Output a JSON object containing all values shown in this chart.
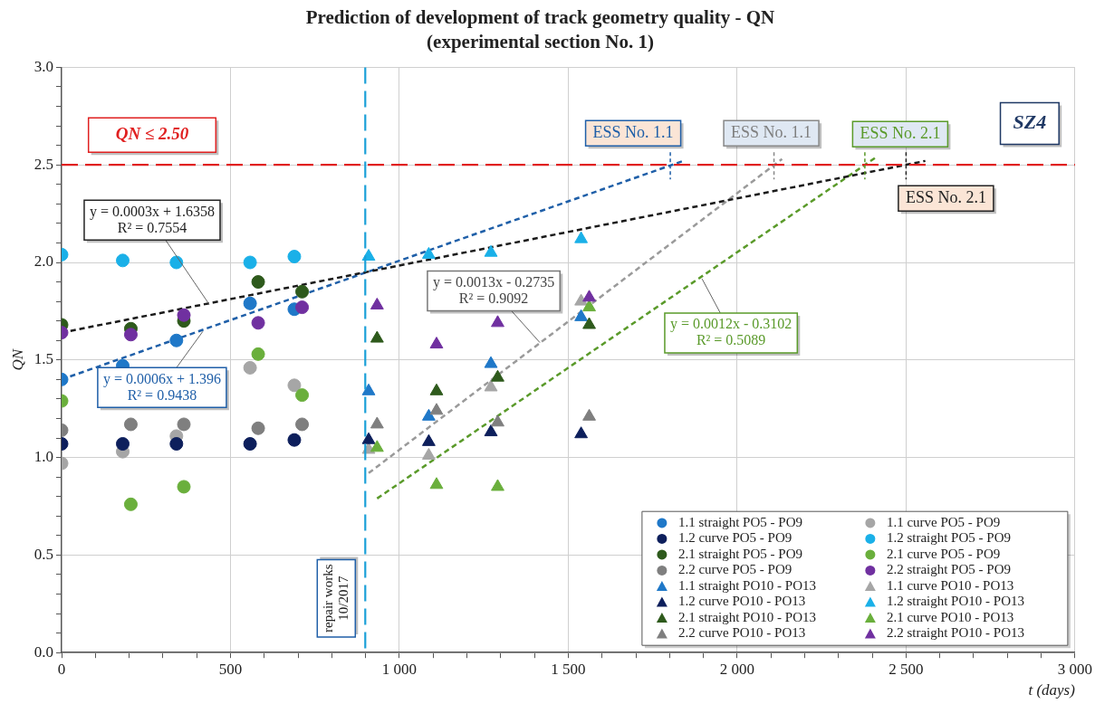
{
  "chart_data": {
    "type": "scatter",
    "title": "Prediction of development of track geometry quality - QN",
    "subtitle": "(experimental section No. 1)",
    "xlabel": "t (days)",
    "ylabel": "QN",
    "xlim": [
      0,
      3000
    ],
    "ylim": [
      0,
      3
    ],
    "xticks": [
      0,
      {
        "value": 100,
        "label": null
      },
      {
        "value": 200,
        "label": null
      },
      {
        "value": 300,
        "label": null
      },
      {
        "value": 400,
        "label": null
      },
      500,
      {
        "value": 600,
        "label": null
      },
      {
        "value": 700,
        "label": null
      },
      {
        "value": 800,
        "label": null
      },
      {
        "value": 900,
        "label": null
      },
      {
        "value": 1000,
        "label": "1 000"
      },
      {
        "value": 1100,
        "label": null
      },
      {
        "value": 1200,
        "label": null
      },
      {
        "value": 1300,
        "label": null
      },
      {
        "value": 1400,
        "label": null
      },
      {
        "value": 1500,
        "label": "1 500"
      },
      {
        "value": 1600,
        "label": null
      },
      {
        "value": 1700,
        "label": null
      },
      {
        "value": 1800,
        "label": null
      },
      {
        "value": 1900,
        "label": null
      },
      {
        "value": 2000,
        "label": "2 000"
      },
      {
        "value": 2100,
        "label": null
      },
      {
        "value": 2200,
        "label": null
      },
      {
        "value": 2300,
        "label": null
      },
      {
        "value": 2400,
        "label": null
      },
      {
        "value": 2500,
        "label": "2 500"
      },
      {
        "value": 2600,
        "label": null
      },
      {
        "value": 2700,
        "label": null
      },
      {
        "value": 2800,
        "label": null
      },
      {
        "value": 2900,
        "label": null
      },
      {
        "value": 3000,
        "label": "3 000"
      }
    ],
    "yticks": [
      {
        "value": 0,
        "label": "0.0"
      },
      {
        "value": 0.1,
        "label": null
      },
      {
        "value": 0.2,
        "label": null
      },
      {
        "value": 0.3,
        "label": null
      },
      {
        "value": 0.4,
        "label": null
      },
      0.5,
      {
        "value": 0.6,
        "label": null
      },
      {
        "value": 0.7,
        "label": null
      },
      {
        "value": 0.8,
        "label": null
      },
      {
        "value": 0.9,
        "label": null
      },
      {
        "value": 1,
        "label": "1.0"
      },
      {
        "value": 1.1,
        "label": null
      },
      {
        "value": 1.2,
        "label": null
      },
      {
        "value": 1.3,
        "label": null
      },
      {
        "value": 1.4,
        "label": null
      },
      1.5,
      {
        "value": 1.6,
        "label": null
      },
      {
        "value": 1.7,
        "label": null
      },
      {
        "value": 1.8,
        "label": null
      },
      {
        "value": 1.9,
        "label": null
      },
      {
        "value": 2,
        "label": "2.0"
      },
      {
        "value": 2.1,
        "label": null
      },
      {
        "value": 2.2,
        "label": null
      },
      {
        "value": 2.3,
        "label": null
      },
      {
        "value": 2.4,
        "label": null
      },
      2.5,
      {
        "value": 2.6,
        "label": null
      },
      {
        "value": 2.7,
        "label": null
      },
      {
        "value": 2.8,
        "label": null
      },
      {
        "value": 2.9,
        "label": null
      },
      {
        "value": 3,
        "label": "3.0"
      }
    ],
    "grid": true,
    "legend": "bottom right",
    "series": [
      {
        "name": "1.1 straight PO5 - PO9",
        "color": "#1f78c8",
        "marker": "circle",
        "x": [
          0,
          181,
          340,
          558,
          689
        ],
        "values": [
          1.4,
          1.47,
          1.6,
          1.79,
          1.76
        ]
      },
      {
        "name": "1.1 curve PO5 - PO9",
        "color": "#a6a6a6",
        "marker": "circle",
        "x": [
          0,
          181,
          340,
          558,
          689
        ],
        "values": [
          0.97,
          1.03,
          1.11,
          1.46,
          1.37
        ]
      },
      {
        "name": "1.2 curve PO5 - PO9",
        "color": "#0d1f5c",
        "marker": "circle",
        "x": [
          0,
          181,
          340,
          558,
          689
        ],
        "values": [
          1.07,
          1.07,
          1.07,
          1.07,
          1.09
        ]
      },
      {
        "name": "1.2 straight PO5 - PO9",
        "color": "#1ab0e8",
        "marker": "circle",
        "x": [
          0,
          181,
          340,
          558,
          689
        ],
        "values": [
          2.04,
          2.01,
          2.0,
          2.0,
          2.03
        ]
      },
      {
        "name": "2.1 straight PO5 - PO9",
        "color": "#2e5a1c",
        "marker": "circle",
        "x": [
          0,
          205,
          362,
          582,
          712
        ],
        "values": [
          1.68,
          1.66,
          1.7,
          1.9,
          1.85
        ]
      },
      {
        "name": "2.1 curve PO5 - PO9",
        "color": "#6aaf3c",
        "marker": "circle",
        "x": [
          0,
          205,
          362,
          582,
          712
        ],
        "values": [
          1.29,
          0.76,
          0.85,
          1.53,
          1.32
        ]
      },
      {
        "name": "2.2 curve PO5 - PO9",
        "color": "#7f7f7f",
        "marker": "circle",
        "x": [
          0,
          205,
          362,
          582,
          712
        ],
        "values": [
          1.14,
          1.17,
          1.17,
          1.15,
          1.17
        ]
      },
      {
        "name": "2.2 straight PO5 - PO9",
        "color": "#7030a0",
        "marker": "circle",
        "x": [
          0,
          205,
          362,
          582,
          712
        ],
        "values": [
          1.64,
          1.63,
          1.73,
          1.69,
          1.77
        ]
      },
      {
        "name": "1.1 straight PO10 - PO13",
        "color": "#1f78c8",
        "marker": "triangle",
        "x": [
          909,
          1087,
          1271,
          1538
        ],
        "values": [
          1.34,
          1.21,
          1.48,
          1.72
        ]
      },
      {
        "name": "1.1 curve PO10 - PO13",
        "color": "#a6a6a6",
        "marker": "triangle",
        "x": [
          909,
          1087,
          1271,
          1538
        ],
        "values": [
          1.04,
          1.01,
          1.36,
          1.8
        ]
      },
      {
        "name": "1.2 curve PO10 - PO13",
        "color": "#0d1f5c",
        "marker": "triangle",
        "x": [
          909,
          1087,
          1271,
          1538
        ],
        "values": [
          1.09,
          1.08,
          1.13,
          1.12
        ]
      },
      {
        "name": "1.2 straight PO10 - PO13",
        "color": "#1ab0e8",
        "marker": "triangle",
        "x": [
          909,
          1087,
          1271,
          1538
        ],
        "values": [
          2.03,
          2.04,
          2.05,
          2.12
        ]
      },
      {
        "name": "2.1 straight PO10 - PO13",
        "color": "#2e5a1c",
        "marker": "triangle",
        "x": [
          934,
          1110,
          1291,
          1562
        ],
        "values": [
          1.61,
          1.34,
          1.41,
          1.68
        ]
      },
      {
        "name": "2.1 curve PO10 - PO13",
        "color": "#6aaf3c",
        "marker": "triangle",
        "x": [
          934,
          1110,
          1291,
          1562
        ],
        "values": [
          1.05,
          0.86,
          0.85,
          1.77
        ]
      },
      {
        "name": "2.2 curve PO10 - PO13",
        "color": "#7f7f7f",
        "marker": "triangle",
        "x": [
          934,
          1110,
          1291,
          1562
        ],
        "values": [
          1.17,
          1.24,
          1.18,
          1.21
        ]
      },
      {
        "name": "2.2 straight PO10 - PO13",
        "color": "#7030a0",
        "marker": "triangle",
        "x": [
          934,
          1110,
          1291,
          1562
        ],
        "values": [
          1.78,
          1.58,
          1.69,
          1.82
        ]
      },
      {
        "type": "line",
        "color": "#1a1a1a",
        "marker": "none",
        "line_style": "dashed",
        "x": [
          0,
          2557
        ],
        "values": [
          1.64,
          2.52
        ]
      },
      {
        "type": "line",
        "color": "#1f5fa8",
        "marker": "none",
        "line_style": "dashed",
        "x": [
          0,
          1840
        ],
        "values": [
          1.4,
          2.52
        ]
      },
      {
        "type": "line",
        "color": "#9a9a9a",
        "marker": "none",
        "line_style": "dashed",
        "x": [
          909,
          2133
        ],
        "values": [
          0.92,
          2.53
        ]
      },
      {
        "type": "line",
        "color": "#5a9a2a",
        "marker": "none",
        "line_style": "dashed",
        "x": [
          934,
          2412
        ],
        "values": [
          0.79,
          2.54
        ]
      }
    ],
    "ref_lines": [
      {
        "axis": "y",
        "value": 2.5,
        "label": "QN ≤ 2.50",
        "color": "#e02020",
        "line_style": "dashed"
      },
      {
        "axis": "x",
        "value": 899,
        "label": "repair works 10/2017",
        "color": "#1aa0d8",
        "line_style": "dashed"
      }
    ],
    "annotations": [
      {
        "text": "y = 0.0003x + 1.6358\nR² = 0.7554",
        "x": 437,
        "y": 1.785
      },
      {
        "text": "y = 0.0006x + 1.396\nR² = 0.9438",
        "x": 418,
        "y": 1.646
      },
      {
        "text": "y = 0.0013x - 0.2735\nR² = 0.9092",
        "x": 1416,
        "y": 1.589
      },
      {
        "text": "y = 0.0012x - 0.3102\nR² = 0.5089",
        "x": 1896,
        "y": 1.916
      },
      {
        "text": "ESS No. 1.1",
        "x": 1802,
        "y": 2.5
      },
      {
        "text": "ESS No. 1.1",
        "x": 2109,
        "y": 2.5
      },
      {
        "text": "ESS No. 2.1",
        "x": 2378,
        "y": 2.5
      },
      {
        "text": "ESS No. 2.1",
        "x": 2500,
        "y": 2.5
      },
      "SZ4"
    ]
  }
}
